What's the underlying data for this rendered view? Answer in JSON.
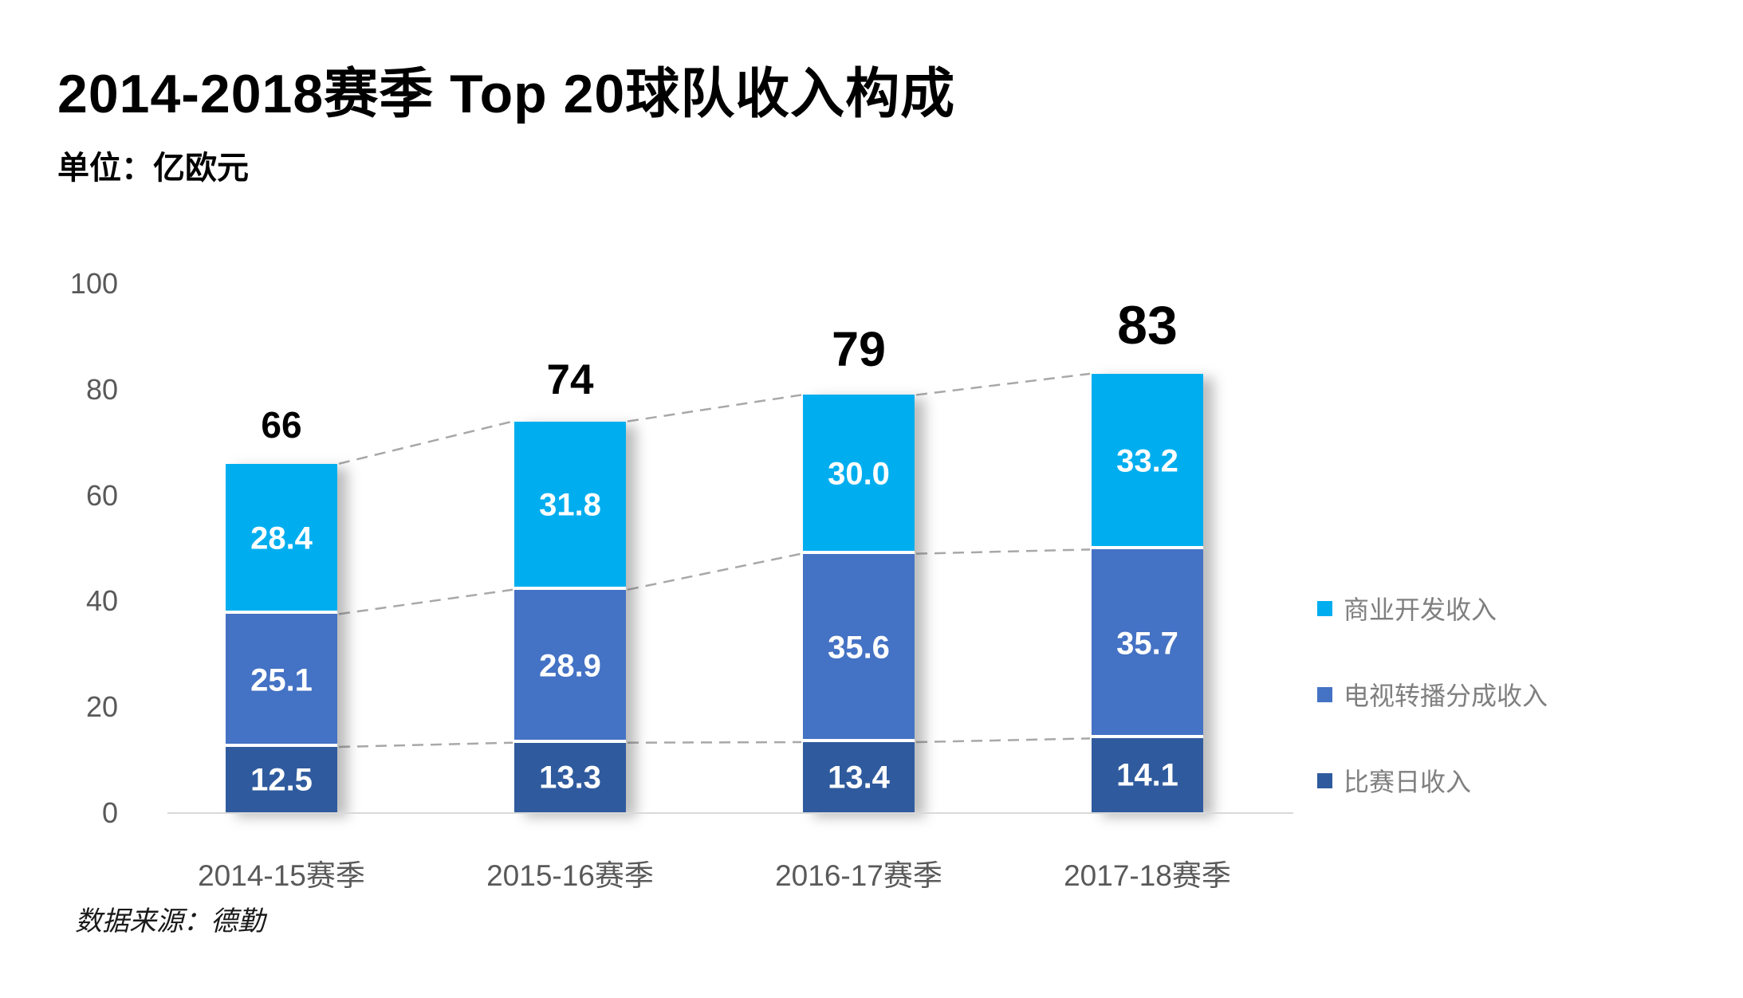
{
  "header": {
    "title": "2014-2018赛季 Top 20球队收入构成",
    "subtitle": "单位：亿欧元"
  },
  "footer": {
    "source": "数据来源：德勤"
  },
  "chart_data": {
    "type": "bar",
    "stacked": true,
    "title": "2014-2018赛季 Top 20球队收入构成",
    "unit": "亿欧元",
    "categories": [
      "2014-15赛季",
      "2015-16赛季",
      "2016-17赛季",
      "2017-18赛季"
    ],
    "series": [
      {
        "name": "比赛日收入",
        "color": "#2F5B9E",
        "values": [
          12.5,
          13.3,
          13.4,
          14.1
        ],
        "value_labels": [
          "12.5",
          "13.3",
          "13.4",
          "14.1"
        ]
      },
      {
        "name": "电视转播分成收入",
        "color": "#4472C4",
        "values": [
          25.1,
          28.9,
          35.6,
          35.7
        ],
        "value_labels": [
          "25.1",
          "28.9",
          "35.6",
          "35.7"
        ]
      },
      {
        "name": "商业开发收入",
        "color": "#00AEEF",
        "values": [
          28.4,
          31.8,
          30.0,
          33.2
        ],
        "value_labels": [
          "28.4",
          "31.8",
          "30.0",
          "33.2"
        ]
      }
    ],
    "totals": [
      66,
      74,
      79,
      83
    ],
    "total_labels": [
      "66",
      "74",
      "79",
      "83"
    ],
    "y_axis": {
      "min": 0,
      "max": 100,
      "step": 20,
      "tick_labels": [
        "0",
        "20",
        "40",
        "60",
        "80",
        "100"
      ]
    },
    "legend": {
      "position": "right",
      "items": [
        {
          "label": "商业开发收入",
          "color": "#00AEEF"
        },
        {
          "label": "电视转播分成收入",
          "color": "#4472C4"
        },
        {
          "label": "比赛日收入",
          "color": "#2F5B9E"
        }
      ]
    },
    "connectors": {
      "show": true,
      "color": "#A8A8A8",
      "style": "dashed"
    },
    "grid": false
  },
  "style_colors": {
    "axis_line": "#D9D9D9",
    "tick_text": "#595959",
    "legend_text": "#7F7F7F"
  }
}
